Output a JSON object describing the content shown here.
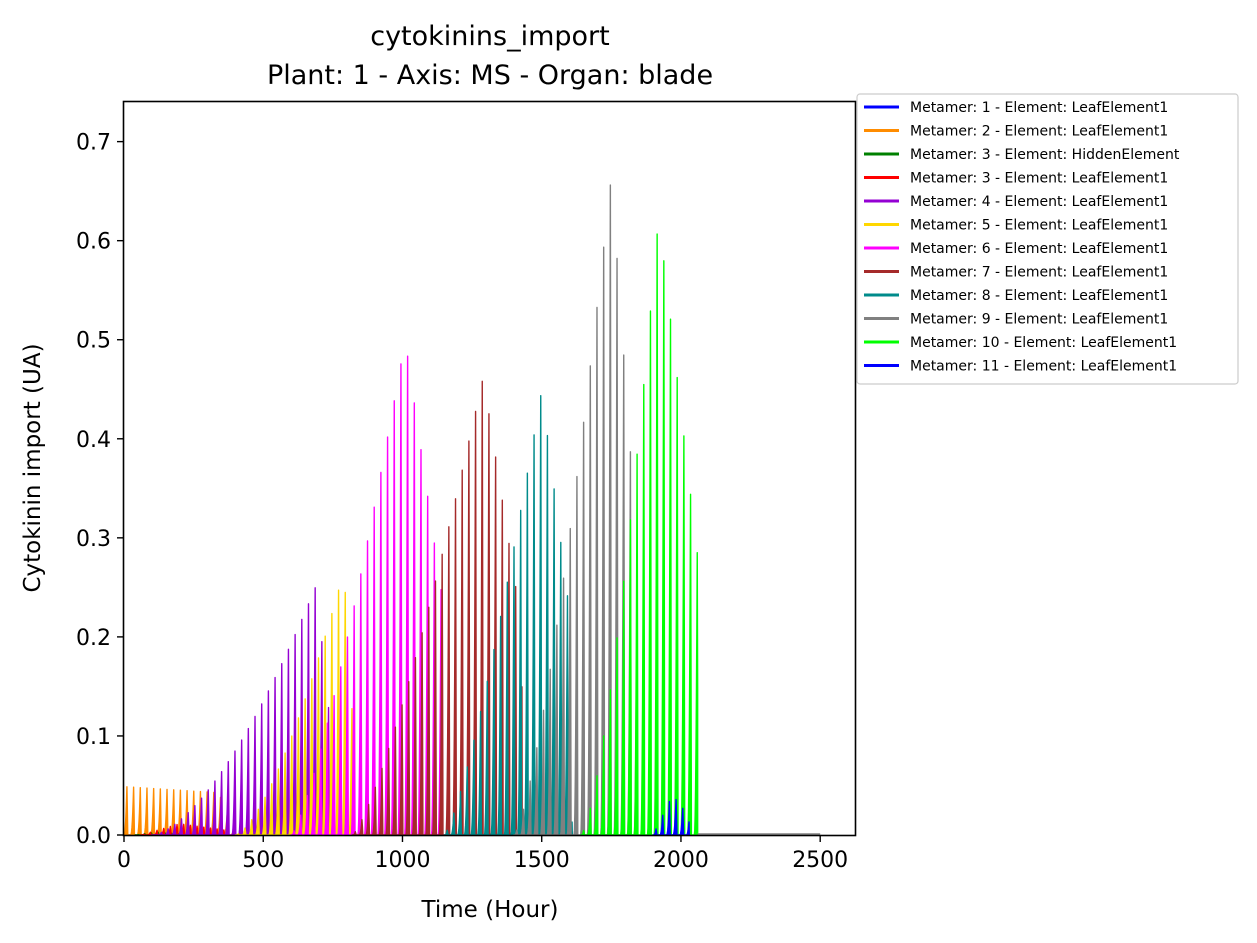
{
  "chart_data": {
    "type": "line",
    "title": "cytokinins_import",
    "subtitle": "Plant: 1 - Axis: MS - Organ: blade",
    "xlabel": "Time (Hour)",
    "ylabel": "Cytokinin import (UA)",
    "xlim": [
      0,
      2625
    ],
    "ylim": [
      0,
      0.74
    ],
    "xticks": [
      0,
      500,
      1000,
      1500,
      2000,
      2500
    ],
    "yticks": [
      0.0,
      0.1,
      0.2,
      0.3,
      0.4,
      0.5,
      0.6,
      0.7
    ],
    "ytick_labels": [
      "0.0",
      "0.1",
      "0.2",
      "0.3",
      "0.4",
      "0.5",
      "0.6",
      "0.7"
    ],
    "grid": false,
    "legend_position": "outside-right-top",
    "series": [
      {
        "name": "Metamer: 1 - Element: LeafElement1",
        "color": "#0000ff",
        "start": 0,
        "peak_t": 20,
        "end": 40,
        "peak": 0.005,
        "floor": 0.0,
        "rise_exp": 1.0,
        "fall_exp": 1.0
      },
      {
        "name": "Metamer: 2 - Element: LeafElement1",
        "color": "#ff8c00",
        "start": 0,
        "peak_t": 5,
        "end": 400,
        "peak": 0.06,
        "floor": 0.0,
        "rise_exp": 1.0,
        "fall_exp": 1.0,
        "mid": 0.052
      },
      {
        "name": "Metamer: 3 - Element: HiddenElement",
        "color": "#008000",
        "start": 40,
        "peak_t": 120,
        "end": 200,
        "peak": 0.003,
        "floor": 0.0,
        "rise_exp": 1.0,
        "fall_exp": 1.0
      },
      {
        "name": "Metamer: 3 - Element: LeafElement1",
        "color": "#ff0000",
        "start": 60,
        "peak_t": 200,
        "end": 360,
        "peak": 0.012,
        "floor": 0.0,
        "rise_exp": 1.0,
        "fall_exp": 1.0
      },
      {
        "name": "Metamer: 4 - Element: LeafElement1",
        "color": "#9400d3",
        "start": 100,
        "peak_t": 690,
        "end": 740,
        "peak": 0.268,
        "floor": 0.0,
        "rise_exp": 1.6,
        "fall_exp": 1.0
      },
      {
        "name": "Metamer: 5 - Element: LeafElement1",
        "color": "#ffd700",
        "start": 400,
        "peak_t": 790,
        "end": 820,
        "peak": 0.284,
        "floor": 0.0,
        "rise_exp": 1.5,
        "fall_exp": 1.0
      },
      {
        "name": "Metamer: 6 - Element: LeafElement1",
        "color": "#ff00ff",
        "start": 600,
        "peak_t": 1010,
        "end": 1150,
        "peak": 0.532,
        "floor": 0.33,
        "rise_exp": 1.3,
        "fall_exp": 1.0
      },
      {
        "name": "Metamer: 7 - Element: LeafElement1",
        "color": "#a52a2a",
        "start": 820,
        "peak_t": 1290,
        "end": 1430,
        "peak": 0.492,
        "floor": 0.34,
        "rise_exp": 1.3,
        "fall_exp": 1.0
      },
      {
        "name": "Metamer: 8 - Element: LeafElement1",
        "color": "#008b8b",
        "start": 1150,
        "peak_t": 1500,
        "end": 1610,
        "peak": 0.478,
        "floor": 0.33,
        "rise_exp": 1.3,
        "fall_exp": 1.0
      },
      {
        "name": "Metamer: 9 - Element: LeafElement1",
        "color": "#808080",
        "start": 1400,
        "peak_t": 1750,
        "end": 1840,
        "peak": 0.708,
        "floor": 0.28,
        "rise_exp": 1.4,
        "fall_exp": 1.0
      },
      {
        "name": "Metamer: 10 - Element: LeafElement1",
        "color": "#00ff00",
        "start": 1640,
        "peak_t": 1920,
        "end": 2060,
        "peak": 0.665,
        "floor": 0.0,
        "rise_exp": 1.5,
        "fall_exp": 1.0
      },
      {
        "name": "Metamer: 11 - Element: LeafElement1",
        "color": "#0000ff",
        "start": 1900,
        "peak_t": 1970,
        "end": 2030,
        "peak": 0.043,
        "floor": 0.0,
        "rise_exp": 1.0,
        "fall_exp": 1.0
      }
    ]
  }
}
